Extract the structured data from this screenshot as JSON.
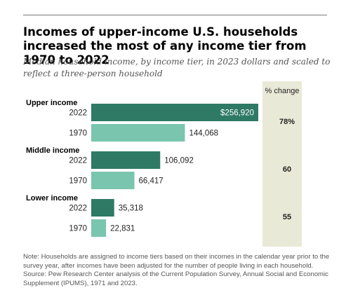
{
  "title": "Incomes of upper-income U.S. households increased the most of any income tier from 1970 to 2022",
  "subtitle": "Median household income, by income tier, in 2023 dollars and scaled to reflect a three-person household",
  "note": "Note: Households are assigned to income tiers based on their incomes in the calendar year prior to the survey year, after incomes have been adjusted for the number of people living in each household.",
  "source": "Source: Pew Research Center analysis of the Current Population Survey, Annual Social and Economic Supplement (IPUMS), 1971 and 2023.",
  "colors": {
    "bar_2022": "#2e7a64",
    "bar_1970": "#7ac5ae",
    "change_panel": "#e9e9d7"
  },
  "chart_data": {
    "type": "bar",
    "orientation": "horizontal",
    "change_header": "% change",
    "groups": [
      {
        "label": "Upper income",
        "change": "78%",
        "bars": [
          {
            "year": "2022",
            "value": 256920,
            "label": "$256,920"
          },
          {
            "year": "1970",
            "value": 144068,
            "label": "144,068"
          }
        ]
      },
      {
        "label": "Middle income",
        "change": "60",
        "bars": [
          {
            "year": "2022",
            "value": 106092,
            "label": "106,092"
          },
          {
            "year": "1970",
            "value": 66417,
            "label": "66,417"
          }
        ]
      },
      {
        "label": "Lower income",
        "change": "55",
        "bars": [
          {
            "year": "2022",
            "value": 35318,
            "label": "35,318"
          },
          {
            "year": "1970",
            "value": 22831,
            "label": "22,831"
          }
        ]
      }
    ],
    "xlim": [
      0,
      256920
    ],
    "grid": false,
    "legend": "none"
  }
}
